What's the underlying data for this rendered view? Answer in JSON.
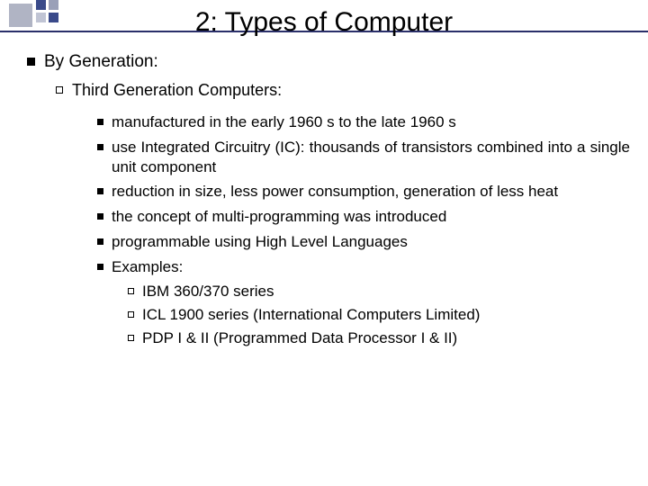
{
  "title": "2: Types of  Computer",
  "level1": {
    "text": "By Generation:"
  },
  "level2": {
    "text": "Third Generation Computers:"
  },
  "points": [
    {
      "text": "manufactured in the early 1960 s to the late 1960 s",
      "justify": false
    },
    {
      "text": "use Integrated Circuitry (IC): thousands of transistors combined into a single unit component",
      "justify": true
    },
    {
      "text": "reduction in size, less power consumption, generation of less heat",
      "justify": true
    },
    {
      "text": "the concept of multi-programming was introduced",
      "justify": false
    },
    {
      "text": "programmable using High Level Languages",
      "justify": false
    },
    {
      "text": "Examples:",
      "justify": false
    }
  ],
  "examples": [
    "IBM 360/370 series",
    "ICL 1900 series (International Computers Limited)",
    "PDP I & II (Programmed Data Processor I & II)"
  ],
  "colors": {
    "accent_dark": "#3a4a8a",
    "accent_light": "#b0b4c4",
    "rule": "#2a2f6a",
    "text": "#000000",
    "background": "#ffffff"
  }
}
